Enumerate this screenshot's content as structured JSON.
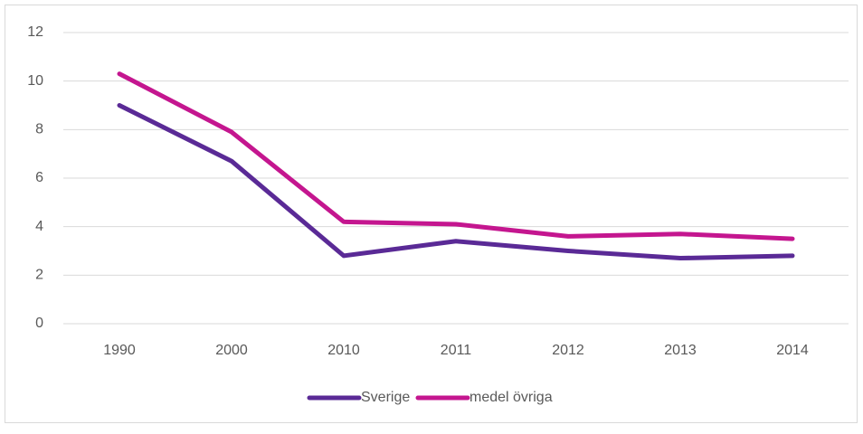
{
  "chart_data": {
    "type": "line",
    "categories": [
      "1990",
      "2000",
      "2010",
      "2011",
      "2012",
      "2013",
      "2014"
    ],
    "series": [
      {
        "name": "Sverige",
        "color": "#5a2a96",
        "values": [
          9.0,
          6.7,
          2.8,
          3.4,
          3.0,
          2.7,
          2.8
        ]
      },
      {
        "name": "medel övriga",
        "color": "#c4168f",
        "values": [
          10.3,
          7.9,
          4.2,
          4.1,
          3.6,
          3.7,
          3.5
        ]
      }
    ],
    "ylim": [
      0,
      12
    ],
    "yticks": [
      0,
      2,
      4,
      6,
      8,
      10,
      12
    ],
    "grid": true,
    "legend": "bottom"
  }
}
